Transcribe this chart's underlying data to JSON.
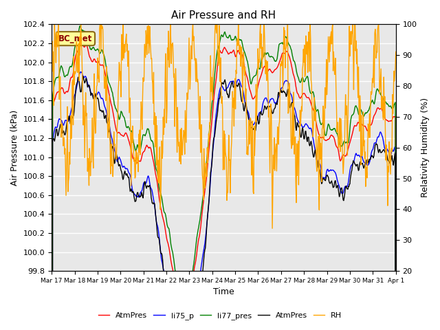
{
  "title": "Air Pressure and RH",
  "xlabel": "Time",
  "ylabel_left": "Air Pressure (kPa)",
  "ylabel_right": "Relativity Humidity (%)",
  "legend_labels": [
    "AtmPres",
    "li75_p",
    "li77_pres",
    "AtmPres",
    "RH"
  ],
  "legend_colors": [
    "red",
    "blue",
    "green",
    "black",
    "orange"
  ],
  "annotation_text": "BC_met",
  "ylim_left": [
    99.8,
    102.4
  ],
  "ylim_right": [
    20,
    100
  ],
  "yticks_left": [
    99.8,
    100.0,
    100.2,
    100.4,
    100.6,
    100.8,
    101.0,
    101.2,
    101.4,
    101.6,
    101.8,
    102.0,
    102.2,
    102.4
  ],
  "yticks_right": [
    20,
    30,
    40,
    50,
    60,
    70,
    80,
    90,
    100
  ],
  "background_color": "#e8e8e8",
  "n_days": 15,
  "seed": 7
}
